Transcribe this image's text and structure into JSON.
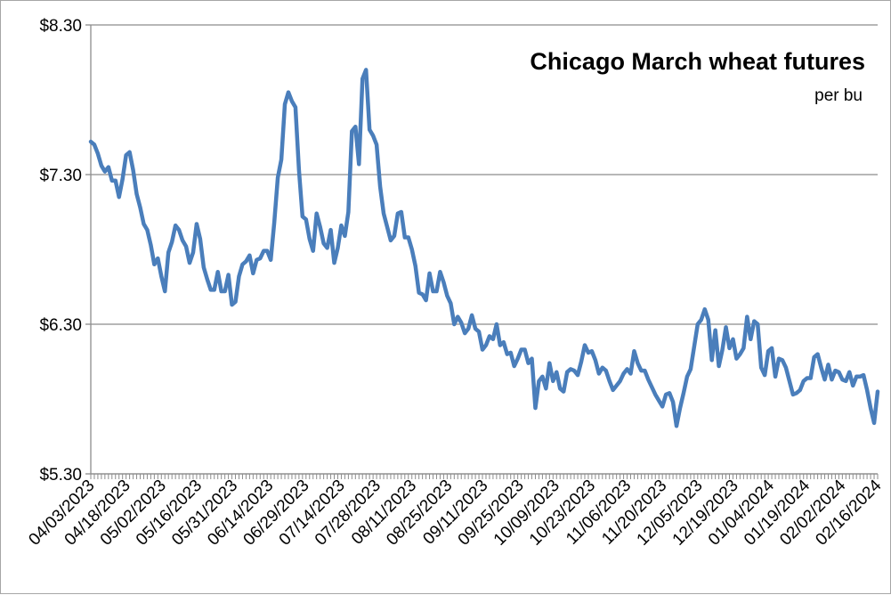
{
  "chart_data": {
    "type": "line",
    "title": "Chicago March wheat futures",
    "subtitle": "per bu",
    "xlabel": "",
    "ylabel": "",
    "ylim": [
      5.3,
      8.3
    ],
    "yticks": [
      "$8.30",
      "$7.30",
      "$6.30",
      "$5.30"
    ],
    "ytick_values": [
      8.3,
      7.3,
      6.3,
      5.3
    ],
    "grid": true,
    "x_tick_labels": [
      "04/03/2023",
      "04/18/2023",
      "05/02/2023",
      "05/16/2023",
      "05/31/2023",
      "06/14/2023",
      "06/29/2023",
      "07/14/2023",
      "07/28/2023",
      "08/11/2023",
      "08/25/2023",
      "09/11/2023",
      "09/25/2023",
      "10/09/2023",
      "10/23/2023",
      "11/06/2023",
      "11/20/2023",
      "12/05/2023",
      "12/19/2023",
      "01/04/2024",
      "01/19/2024",
      "02/02/2024",
      "02/16/2024"
    ],
    "series": [
      {
        "color": "#4a7ebb",
        "values": [
          7.52,
          7.5,
          7.44,
          7.36,
          7.32,
          7.35,
          7.26,
          7.26,
          7.15,
          7.27,
          7.43,
          7.45,
          7.33,
          7.17,
          7.08,
          6.97,
          6.93,
          6.83,
          6.7,
          6.74,
          6.62,
          6.52,
          6.78,
          6.85,
          6.96,
          6.93,
          6.86,
          6.82,
          6.71,
          6.78,
          6.97,
          6.87,
          6.68,
          6.6,
          6.53,
          6.53,
          6.65,
          6.52,
          6.52,
          6.63,
          6.43,
          6.45,
          6.62,
          6.7,
          6.72,
          6.76,
          6.64,
          6.73,
          6.74,
          6.79,
          6.79,
          6.73,
          6.98,
          7.28,
          7.4,
          7.77,
          7.85,
          7.79,
          7.75,
          7.33,
          7.02,
          7.0,
          6.87,
          6.79,
          7.04,
          6.95,
          6.84,
          6.81,
          6.93,
          6.71,
          6.81,
          6.96,
          6.89,
          7.05,
          7.59,
          7.62,
          7.37,
          7.94,
          8.0,
          7.6,
          7.56,
          7.5,
          7.22,
          7.04,
          6.95,
          6.86,
          6.89,
          7.04,
          7.05,
          6.88,
          6.88,
          6.8,
          6.69,
          6.51,
          6.5,
          6.46,
          6.64,
          6.52,
          6.52,
          6.65,
          6.58,
          6.49,
          6.44,
          6.3,
          6.35,
          6.31,
          6.24,
          6.27,
          6.36,
          6.27,
          6.25,
          6.13,
          6.16,
          6.22,
          6.2,
          6.3,
          6.16,
          6.18,
          6.1,
          6.11,
          6.02,
          6.07,
          6.13,
          6.13,
          6.04,
          6.07,
          5.74,
          5.92,
          5.95,
          5.87,
          6.04,
          5.92,
          5.98,
          5.87,
          5.85,
          5.98,
          6.0,
          5.99,
          5.96,
          6.05,
          6.16,
          6.11,
          6.12,
          6.06,
          5.97,
          6.01,
          5.99,
          5.92,
          5.86,
          5.89,
          5.92,
          5.97,
          6.0,
          5.97,
          6.12,
          6.04,
          5.99,
          5.99,
          5.93,
          5.88,
          5.83,
          5.79,
          5.75,
          5.83,
          5.84,
          5.78,
          5.62,
          5.74,
          5.84,
          5.95,
          6.0,
          6.15,
          6.3,
          6.33,
          6.4,
          6.33,
          6.06,
          6.26,
          6.02,
          6.13,
          6.28,
          6.14,
          6.2,
          6.07,
          6.1,
          6.14,
          6.35,
          6.2,
          6.32,
          6.3,
          6.01,
          5.96,
          6.12,
          6.14,
          5.95,
          6.07,
          6.06,
          6.01,
          5.92,
          5.83,
          5.84,
          5.86,
          5.92,
          5.94,
          5.94,
          6.08,
          6.1,
          6.01,
          5.93,
          6.03,
          5.93,
          5.99,
          5.98,
          5.93,
          5.92,
          5.98,
          5.89,
          5.95,
          5.95,
          5.96,
          5.86,
          5.74,
          5.64,
          5.85
        ]
      }
    ]
  }
}
